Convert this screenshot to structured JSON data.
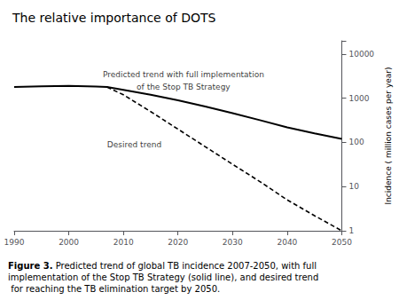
{
  "chart_data": {
    "type": "line",
    "title": "The relative importance of DOTS",
    "ylabel": "Incidence ( million cases per year)",
    "log": "y",
    "grid": false,
    "xlim": [
      1990,
      2050
    ],
    "xticks": [
      1990,
      2000,
      2010,
      2020,
      2030,
      2040,
      2050
    ],
    "ylim": [
      1,
      20000
    ],
    "yticks": [
      1,
      10,
      100,
      1000,
      10000
    ],
    "series": [
      {
        "x": [
          1990,
          1995,
          2000,
          2005,
          2007,
          2010,
          2015,
          2020,
          2025,
          2030,
          2035,
          2040,
          2045,
          2050
        ],
        "values": [
          1800,
          1870,
          1900,
          1850,
          1800,
          1550,
          1200,
          900,
          650,
          460,
          320,
          220,
          160,
          120
        ],
        "color": "#000000",
        "line_style": "solid"
      },
      {
        "x": [
          2007,
          2010,
          2015,
          2020,
          2025,
          2030,
          2035,
          2040,
          2045,
          2050
        ],
        "values": [
          1800,
          1200,
          500,
          200,
          80,
          32,
          13,
          5,
          2.2,
          1.0
        ],
        "color": "#000000",
        "line_style": "dashed"
      }
    ],
    "annotations": [
      {
        "text": "Predicted trend with full implementation",
        "x": 2021,
        "y": 3500
      },
      {
        "text": "of the Stop TB Strategy",
        "x": 2021,
        "y": 1800
      },
      {
        "text": "Desired trend",
        "x": 2012,
        "y": 90
      }
    ],
    "caption_bold": "Figure 3.",
    "caption": " Predicted trend of global TB incidence 2007-2050, with full implementation of the Stop TB Strategy (solid line), and desired trend for reaching the TB elimination target by 2050."
  }
}
